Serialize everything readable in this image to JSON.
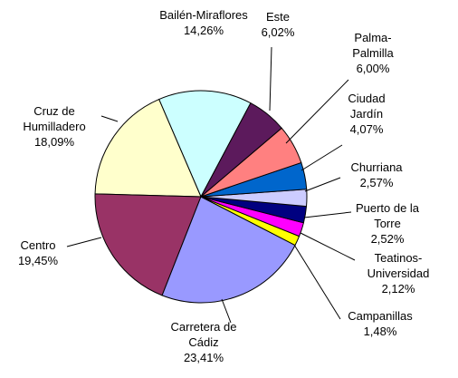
{
  "chart_data": {
    "type": "pie",
    "categories": [
      "Este",
      "Palma-Palmilla",
      "Ciudad Jardín",
      "Churriana",
      "Puerto de la Torre",
      "Teatinos-Universidad",
      "Campanillas",
      "Carretera de Cádiz",
      "Centro",
      "Cruz de Humilladero",
      "Bailén-Miraflores"
    ],
    "values": [
      6.02,
      6.0,
      4.07,
      2.57,
      2.52,
      2.12,
      1.48,
      23.41,
      19.45,
      18.09,
      14.26
    ],
    "value_labels": [
      "6,02%",
      "6,00%",
      "4,07%",
      "2,57%",
      "2,52%",
      "2,12%",
      "1,48%",
      "23,41%",
      "19,45%",
      "18,09%",
      "14,26%"
    ],
    "colors": [
      "#5c1a5c",
      "#ff8080",
      "#0066cc",
      "#ccccff",
      "#000080",
      "#ff00ff",
      "#ffff00",
      "#9999ff",
      "#993366",
      "#ffffcc",
      "#ccffff"
    ]
  }
}
